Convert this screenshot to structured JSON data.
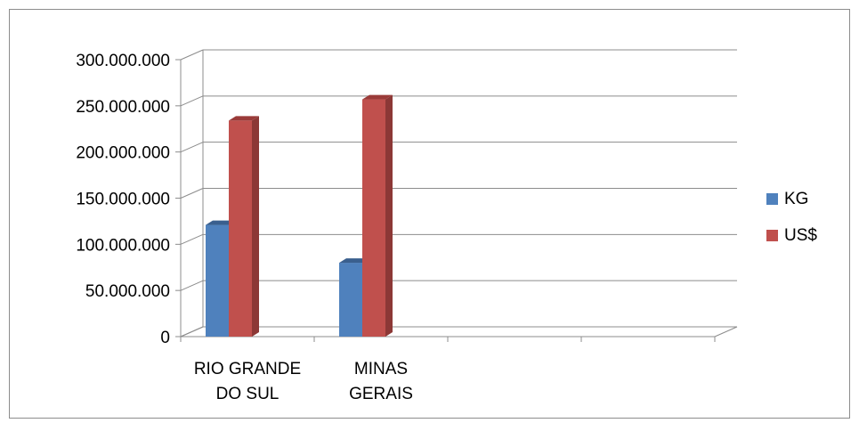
{
  "chart_data": {
    "type": "bar",
    "title": "",
    "xlabel": "",
    "ylabel": "",
    "categories": [
      [
        "RIO GRANDE",
        "DO SUL"
      ],
      [
        "MINAS",
        "GERAIS"
      ],
      [
        "",
        ""
      ],
      [
        "",
        ""
      ]
    ],
    "series": [
      {
        "name": "KG",
        "color": "#4F81BD",
        "side_color": "#385D8A",
        "top_color": "#3A5F8E",
        "values": [
          121000000,
          80000000,
          null,
          null
        ]
      },
      {
        "name": "US$",
        "color": "#C0504D",
        "side_color": "#8C3836",
        "top_color": "#9A3B39",
        "values": [
          234000000,
          257000000,
          null,
          null
        ]
      }
    ],
    "y_ticks": [
      "0",
      "50.000.000",
      "100.000.000",
      "150.000.000",
      "200.000.000",
      "250.000.000",
      "300.000.000"
    ],
    "ylim": [
      0,
      300000000
    ],
    "grid": true,
    "legend_position": "right",
    "style": "3d-clustered-column"
  }
}
